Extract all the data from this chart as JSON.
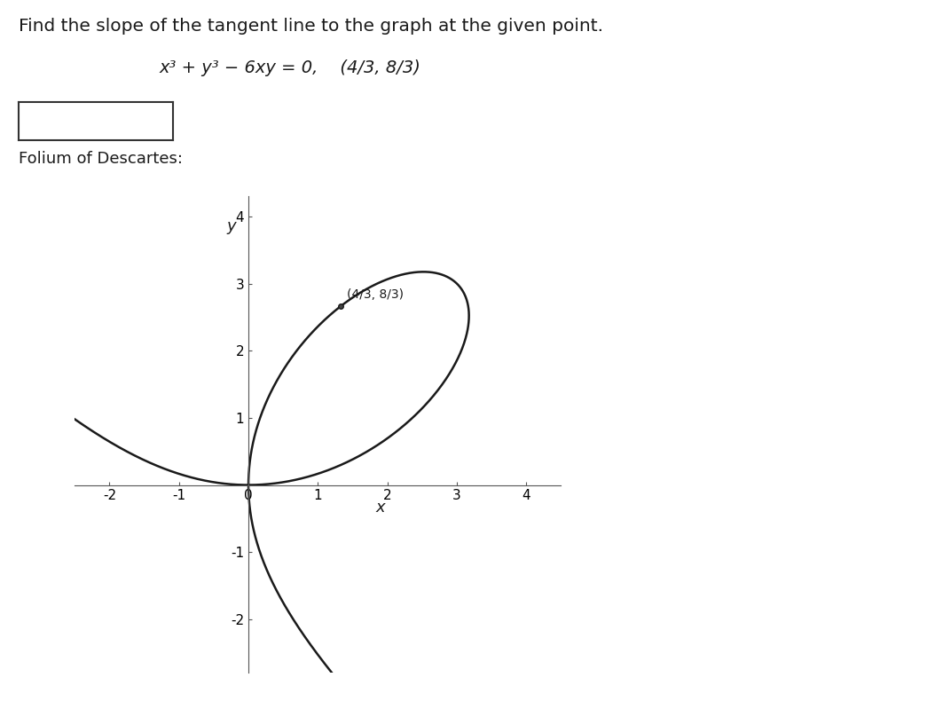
{
  "title_text": "Find the slope of the tangent line to the graph at the given point.",
  "equation_text": "x³ + y³ − 6xy = 0,    (4/3, 8/3)",
  "folium_label": "Folium of Descartes:",
  "point_label": "(4/3, 8/3)",
  "point_x": 1.3333333333,
  "point_y": 2.6666666667,
  "xlim": [
    -2.5,
    4.5
  ],
  "ylim": [
    -2.8,
    4.3
  ],
  "xticks": [
    -2,
    -1,
    0,
    1,
    2,
    3,
    4
  ],
  "yticks": [
    -2,
    -1,
    1,
    2,
    3,
    4
  ],
  "xlabel": "x",
  "ylabel": "y",
  "curve_color": "#1a1a1a",
  "curve_linewidth": 1.8,
  "background_color": "#ffffff",
  "axes_color": "#555555",
  "font_color": "#1a1a1a",
  "title_fontsize": 14.5,
  "eq_fontsize": 14,
  "label_fontsize": 13,
  "tick_fontsize": 11,
  "point_marker_size": 4,
  "annot_fontsize": 10
}
